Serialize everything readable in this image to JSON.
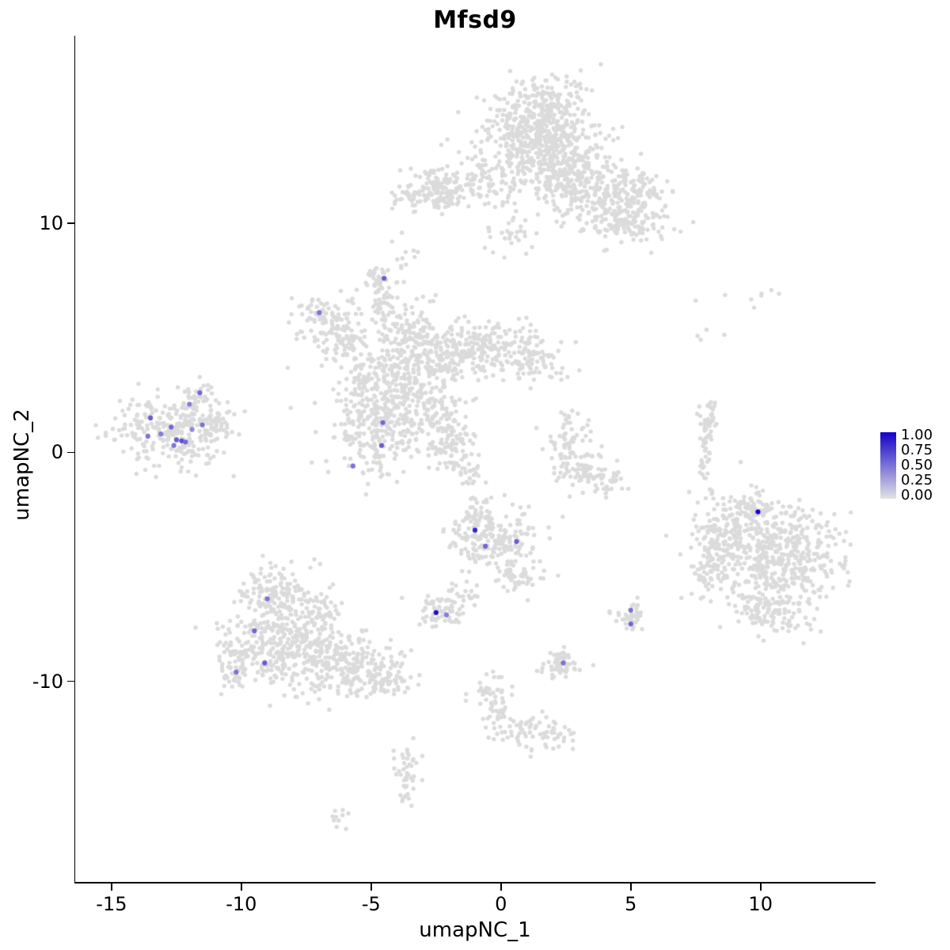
{
  "chart_data": {
    "type": "scatter",
    "title": "Mfsd9",
    "xlabel": "umapNC_1",
    "ylabel": "umapNC_2",
    "xlim": [
      -16.4,
      14.4
    ],
    "ylim": [
      -18.8,
      18.2
    ],
    "x_ticks": [
      "-15",
      "-10",
      "-5",
      "0",
      "5",
      "10"
    ],
    "y_ticks": [
      "-10",
      "0",
      "10"
    ],
    "grid": "off",
    "legend_position": "right",
    "legend": {
      "labels": [
        "1.00",
        "0.75",
        "0.50",
        "0.25",
        "0.00"
      ],
      "low_color": "#E3E3E3",
      "high_color": "#1302C9"
    },
    "point_color_base": "#DBDBDB",
    "cluster_format": [
      "center_x",
      "center_y",
      "sd_x",
      "sd_y",
      "n_cells"
    ],
    "clusters": [
      [
        1.3,
        14.2,
        1.1,
        0.9,
        300
      ],
      [
        1.9,
        15.5,
        0.7,
        0.5,
        90
      ],
      [
        1.8,
        13.0,
        1.3,
        0.8,
        280
      ],
      [
        3.1,
        11.6,
        1.1,
        0.7,
        220
      ],
      [
        4.7,
        10.2,
        0.9,
        0.6,
        170
      ],
      [
        5.3,
        11.4,
        0.6,
        0.5,
        70
      ],
      [
        -1.2,
        11.6,
        1.2,
        0.55,
        150
      ],
      [
        -2.8,
        11.3,
        0.6,
        0.4,
        80
      ],
      [
        0.3,
        9.6,
        0.5,
        0.5,
        30
      ],
      [
        -3.6,
        8.6,
        0.4,
        0.5,
        12
      ],
      [
        -4.3,
        3.2,
        1.0,
        1.0,
        260
      ],
      [
        -2.5,
        4.3,
        1.0,
        0.7,
        200
      ],
      [
        -0.5,
        4.6,
        1.0,
        0.55,
        160
      ],
      [
        1.2,
        4.0,
        0.7,
        0.5,
        80
      ],
      [
        -3.6,
        5.6,
        0.5,
        0.6,
        70
      ],
      [
        -4.7,
        7.5,
        0.35,
        0.45,
        40
      ],
      [
        -4.6,
        6.4,
        0.25,
        0.5,
        30
      ],
      [
        -6.8,
        5.9,
        0.7,
        0.5,
        90
      ],
      [
        -6.1,
        4.9,
        0.5,
        0.4,
        50
      ],
      [
        -4.9,
        1.0,
        0.85,
        1.0,
        230
      ],
      [
        -2.6,
        1.4,
        0.6,
        0.8,
        120
      ],
      [
        -1.8,
        0.3,
        0.4,
        0.7,
        60
      ],
      [
        -1.2,
        -0.9,
        0.25,
        0.45,
        25
      ],
      [
        -12.7,
        0.9,
        1.05,
        0.75,
        290
      ],
      [
        -11.7,
        2.3,
        0.3,
        0.35,
        30
      ],
      [
        -11.0,
        1.2,
        0.3,
        0.3,
        25
      ],
      [
        2.7,
        0.2,
        0.55,
        0.7,
        90
      ],
      [
        3.3,
        -1.0,
        0.45,
        0.4,
        45
      ],
      [
        4.1,
        -1.3,
        0.35,
        0.3,
        25
      ],
      [
        7.9,
        0.5,
        0.15,
        0.85,
        50
      ],
      [
        8.15,
        1.7,
        0.2,
        0.3,
        14
      ],
      [
        10.6,
        -4.6,
        1.3,
        1.1,
        500
      ],
      [
        8.6,
        -3.4,
        0.6,
        0.7,
        120
      ],
      [
        9.9,
        -2.4,
        0.45,
        0.4,
        60
      ],
      [
        10.3,
        -6.9,
        0.8,
        0.5,
        100
      ],
      [
        8.0,
        -5.2,
        0.3,
        0.6,
        40
      ],
      [
        -0.3,
        -3.9,
        0.9,
        0.75,
        200
      ],
      [
        -1.0,
        -2.6,
        0.3,
        0.4,
        35
      ],
      [
        0.6,
        -5.4,
        0.4,
        0.4,
        40
      ],
      [
        -1.4,
        -6.3,
        0.3,
        0.3,
        22
      ],
      [
        -2.4,
        -7.0,
        0.45,
        0.35,
        60
      ],
      [
        5.0,
        -7.2,
        0.3,
        0.35,
        40
      ],
      [
        2.3,
        -9.3,
        0.4,
        0.4,
        55
      ],
      [
        -8.3,
        -8.3,
        1.1,
        1.0,
        350
      ],
      [
        -8.8,
        -6.2,
        0.7,
        0.6,
        130
      ],
      [
        -6.0,
        -9.3,
        1.0,
        0.7,
        200
      ],
      [
        -4.4,
        -9.9,
        0.5,
        0.4,
        70
      ],
      [
        -10.2,
        -9.3,
        0.4,
        0.5,
        60
      ],
      [
        -6.9,
        -6.9,
        0.4,
        0.4,
        40
      ],
      [
        -0.3,
        -10.4,
        0.4,
        0.4,
        35
      ],
      [
        -0.1,
        -11.5,
        0.3,
        0.5,
        30
      ],
      [
        0.9,
        -12.2,
        0.5,
        0.4,
        45
      ],
      [
        2.2,
        -12.4,
        0.3,
        0.3,
        25
      ],
      [
        -3.6,
        -14.2,
        0.25,
        0.65,
        45
      ],
      [
        -6.2,
        -16.0,
        0.25,
        0.2,
        10
      ],
      [
        8.5,
        6.9,
        1.2,
        0.35,
        8
      ],
      [
        7.8,
        4.9,
        0.3,
        0.3,
        4
      ]
    ],
    "expressing_cells": [
      {
        "x": -11.6,
        "y": 2.6,
        "value": 0.55
      },
      {
        "x": -12.0,
        "y": 2.1,
        "value": 0.45
      },
      {
        "x": -13.5,
        "y": 1.5,
        "value": 0.6
      },
      {
        "x": -12.7,
        "y": 1.1,
        "value": 0.55
      },
      {
        "x": -11.5,
        "y": 1.2,
        "value": 0.5
      },
      {
        "x": -13.6,
        "y": 0.7,
        "value": 0.5
      },
      {
        "x": -13.1,
        "y": 0.8,
        "value": 0.45
      },
      {
        "x": -12.5,
        "y": 0.55,
        "value": 0.6
      },
      {
        "x": -12.3,
        "y": 0.5,
        "value": 0.65
      },
      {
        "x": -12.6,
        "y": 0.3,
        "value": 0.5
      },
      {
        "x": -12.15,
        "y": 0.45,
        "value": 0.55
      },
      {
        "x": -11.9,
        "y": 1.0,
        "value": 0.4
      },
      {
        "x": -7.0,
        "y": 6.1,
        "value": 0.5
      },
      {
        "x": -4.5,
        "y": 7.6,
        "value": 0.6
      },
      {
        "x": -4.55,
        "y": 1.3,
        "value": 0.55
      },
      {
        "x": -4.6,
        "y": 0.3,
        "value": 0.6
      },
      {
        "x": -5.7,
        "y": -0.6,
        "value": 0.5
      },
      {
        "x": -1.0,
        "y": -3.4,
        "value": 0.85
      },
      {
        "x": -0.6,
        "y": -4.1,
        "value": 0.55
      },
      {
        "x": 0.6,
        "y": -3.9,
        "value": 0.6
      },
      {
        "x": -2.5,
        "y": -7.0,
        "value": 0.95
      },
      {
        "x": -2.1,
        "y": -7.1,
        "value": 0.45
      },
      {
        "x": 5.0,
        "y": -6.9,
        "value": 0.5
      },
      {
        "x": 5.0,
        "y": -7.5,
        "value": 0.55
      },
      {
        "x": 2.4,
        "y": -9.2,
        "value": 0.5
      },
      {
        "x": 9.9,
        "y": -2.6,
        "value": 1.0
      },
      {
        "x": -9.0,
        "y": -6.4,
        "value": 0.5
      },
      {
        "x": -9.5,
        "y": -7.8,
        "value": 0.55
      },
      {
        "x": -9.1,
        "y": -9.2,
        "value": 0.6
      },
      {
        "x": -10.2,
        "y": -9.6,
        "value": 0.5
      }
    ]
  }
}
